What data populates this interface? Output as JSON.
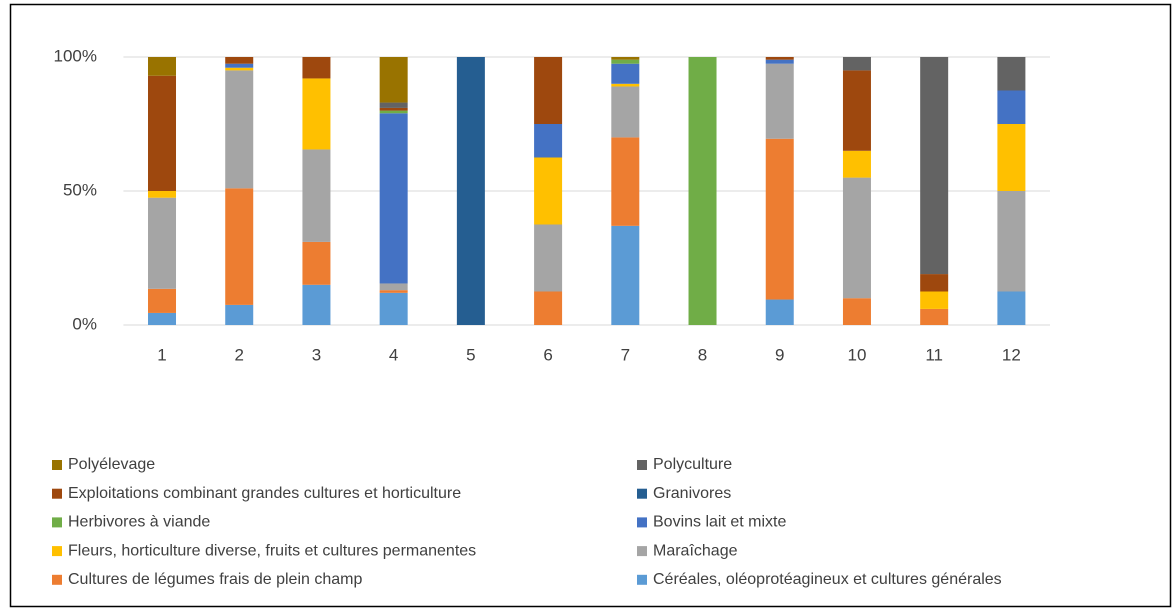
{
  "chart_data": {
    "type": "bar",
    "stacked": true,
    "categories": [
      "1",
      "2",
      "3",
      "4",
      "5",
      "6",
      "7",
      "8",
      "9",
      "10",
      "11",
      "12"
    ],
    "ylim": [
      0,
      100
    ],
    "yticks": [
      {
        "value": 0,
        "label": "0%"
      },
      {
        "value": 50,
        "label": "50%"
      },
      {
        "value": 100,
        "label": "100%"
      }
    ],
    "grid": true,
    "series": [
      {
        "name": "Céréales, oléoprotéagineux et cultures générales",
        "color": "#5b9bd5",
        "values": [
          4.5,
          7.5,
          15,
          12,
          0,
          0,
          37,
          0,
          9.5,
          0,
          0,
          12.5
        ]
      },
      {
        "name": "Cultures de légumes frais de plein champ",
        "color": "#ed7d31",
        "values": [
          9,
          43.5,
          16,
          1,
          0,
          12.5,
          33,
          0,
          60,
          10,
          6,
          0
        ]
      },
      {
        "name": "Maraîchage",
        "color": "#a5a5a5",
        "values": [
          34,
          44,
          34.5,
          2.5,
          0,
          25,
          19,
          0,
          28,
          45,
          0,
          37.5
        ]
      },
      {
        "name": "Fleurs, horticulture diverse, fruits et cultures permanentes",
        "color": "#ffc000",
        "values": [
          2.5,
          1,
          26.5,
          0,
          0,
          25,
          1,
          0,
          0,
          10,
          6.5,
          25
        ]
      },
      {
        "name": "Bovins lait et mixte",
        "color": "#4472c4",
        "values": [
          0,
          1.5,
          0,
          63.5,
          0,
          12.5,
          7.5,
          0,
          1.5,
          0,
          0,
          12.5
        ]
      },
      {
        "name": "Herbivores à viande",
        "color": "#70ad47",
        "values": [
          0,
          0,
          0,
          1,
          0,
          0,
          1.5,
          100,
          0,
          0,
          0,
          0
        ]
      },
      {
        "name": "Granivores",
        "color": "#255e91",
        "values": [
          0,
          0,
          0,
          0,
          100,
          0,
          0,
          0,
          0,
          0,
          0,
          0
        ]
      },
      {
        "name": "Exploitations combinant grandes cultures et horticulture",
        "color": "#9e480e",
        "values": [
          43,
          2.5,
          8,
          1,
          0,
          25,
          0,
          0,
          1,
          30,
          6.5,
          0
        ]
      },
      {
        "name": "Polyculture",
        "color": "#636363",
        "values": [
          0,
          0,
          0,
          2,
          0,
          0,
          0,
          0,
          0,
          5,
          81,
          12.5
        ]
      },
      {
        "name": "Polyélevage",
        "color": "#997300",
        "values": [
          7,
          0,
          0,
          17,
          0,
          0,
          1,
          0,
          0,
          0,
          0,
          0
        ]
      }
    ]
  }
}
